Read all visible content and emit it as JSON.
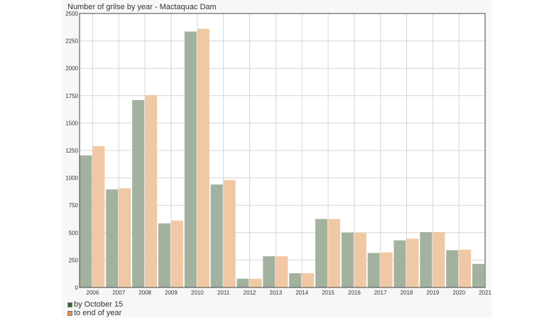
{
  "colors": {
    "s1": "#a3b19f",
    "s2": "#f0c8a4",
    "grid": "#d6d6d6",
    "plotbg": "#ffffff",
    "frame": "#f7f7f7"
  },
  "chart_data": {
    "type": "bar",
    "title": "Number of grilse by year - Mactaquac Dam",
    "xlabel": "",
    "ylabel": "",
    "ylim": [
      0,
      2500
    ],
    "yticks": [
      0,
      250,
      500,
      750,
      1000,
      1250,
      1500,
      1750,
      2000,
      2250,
      2500
    ],
    "categories": [
      "2006",
      "2007",
      "2008",
      "2009",
      "2010",
      "2011",
      "2012",
      "2013",
      "2014",
      "2015",
      "2016",
      "2017",
      "2018",
      "2019",
      "2020",
      "2021"
    ],
    "series": [
      {
        "name": "by October 15",
        "values": [
          1205,
          895,
          1710,
          585,
          2335,
          940,
          80,
          285,
          130,
          625,
          500,
          315,
          430,
          505,
          340,
          215
        ]
      },
      {
        "name": "to end of year",
        "values": [
          1290,
          905,
          1755,
          610,
          2360,
          980,
          80,
          285,
          130,
          625,
          500,
          320,
          445,
          505,
          345,
          null
        ]
      }
    ],
    "legend_position": "bottom-left",
    "grid": true
  }
}
